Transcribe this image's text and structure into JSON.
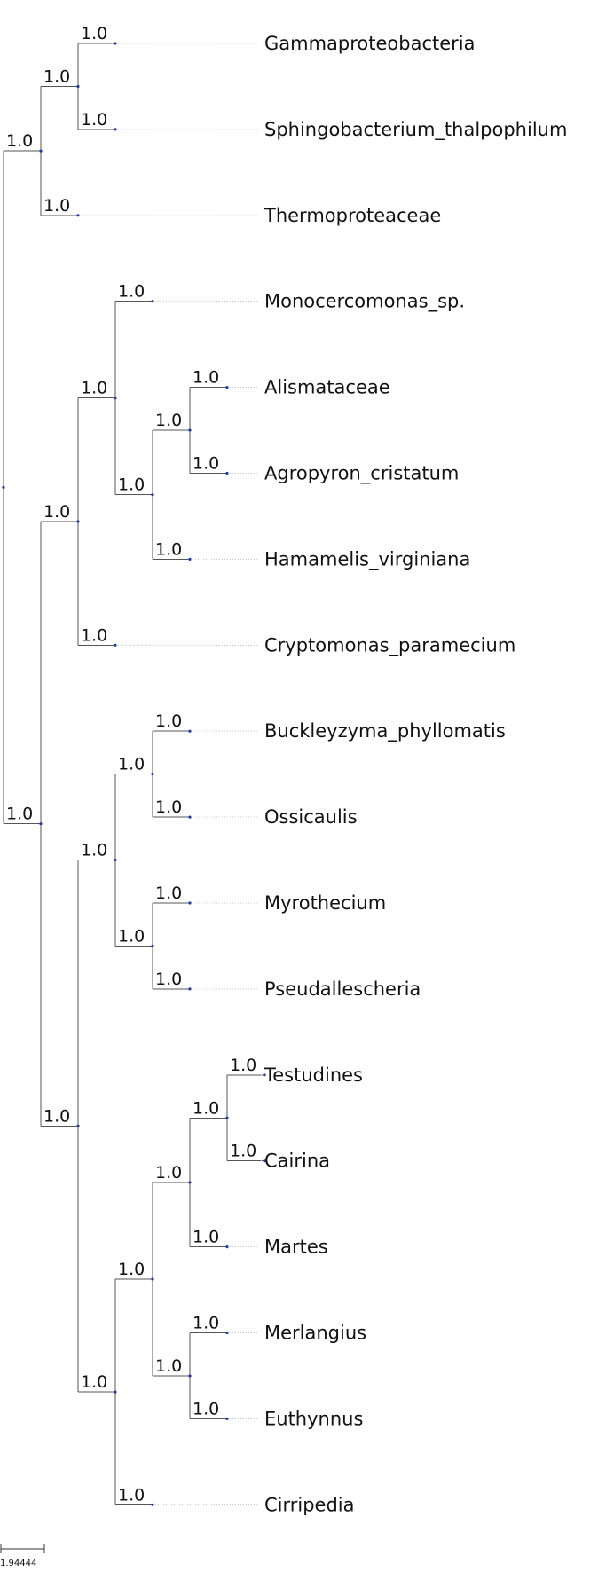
{
  "tree": {
    "leaves": [
      "Gammaproteobacteria",
      "Sphingobacterium_thalpophilum",
      "Thermoproteaceae",
      "Monocercomonas_sp.",
      "Alismataceae",
      "Agropyron_cristatum",
      "Hamamelis_virginiana",
      "Cryptomonas_paramecium",
      "Buckleyzyma_phyllomatis",
      "Ossicaulis",
      "Myrothecium",
      "Pseudallescheria",
      "Testudines",
      "Cairina",
      "Martes",
      "Merlangius",
      "Euthynnus",
      "Cirripedia"
    ],
    "newick": "(((Gammaproteobacteria:1.0,Sphingobacterium_thalpophilum:1.0)1.0:1.0,Thermoproteaceae:1.0)1.0:1.0,(((Monocercomonas_sp.:1.0,((Alismataceae:1.0,Agropyron_cristatum:1.0)1.0:1.0,Hamamelis_virginiana:1.0)1.0:1.0)1.0:1.0,Cryptomonas_paramecium:1.0)1.0:1.0,(((Buckleyzyma_phyllomatis:1.0,Ossicaulis:1.0)1.0:1.0,(Myrothecium:1.0,Pseudallescheria:1.0)1.0:1.0)1.0:1.0,((((Testudines:1.0,Cairina:1.0)1.0:1.0,Martes:1.0)1.0:1.0,(Merlangius:1.0,Euthynnus:1.0)1.0:1.0)1.0:1.0,Cirripedia:1.0)1.0:1.0)1.0:1.0)1.0:1.0);",
    "support_value": "1.0"
  },
  "scale_bar": {
    "label": "1.94444"
  },
  "colors": {
    "branch": "#555555",
    "node_dot": "#1f3fa8",
    "text": "#111111",
    "leader": "#c8c8c8"
  }
}
